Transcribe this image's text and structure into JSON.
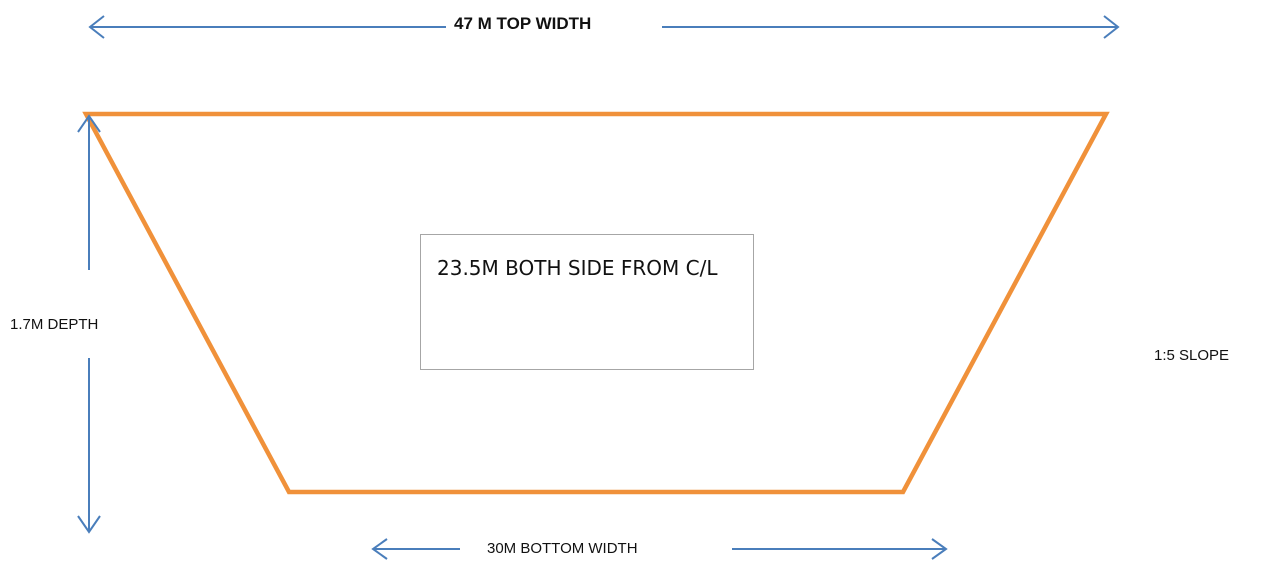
{
  "labels": {
    "top_width": "47 M TOP WIDTH",
    "depth": "1.7M DEPTH",
    "slope": "1:5 SLOPE",
    "bottom_width": "30M BOTTOM WIDTH",
    "note": "23.5M BOTH SIDE FROM C/L"
  },
  "colors": {
    "section_outline": "#f0913a",
    "dimension_arrows": "#4a7ebb",
    "note_border": "#a6a6a6"
  }
}
